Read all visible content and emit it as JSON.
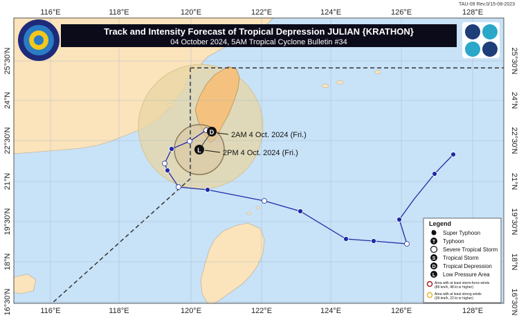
{
  "map": {
    "title": "Track and Intensity Forecast of Tropical Depression JULIAN {KRATHON}",
    "subtitle": "04 October 2024, 5AM Tropical Cyclone Bulletin #34",
    "doc_code": "TAU-09 Rev.0/15-08-2023",
    "longitude_labels": [
      "116°E",
      "118°E",
      "120°E",
      "122°E",
      "124°E",
      "126°E",
      "128°E"
    ],
    "latitude_labels": [
      "25°30'N",
      "24°N",
      "22°30'N",
      "21°N",
      "19°30'N",
      "18°N",
      "16°30'N"
    ],
    "colors": {
      "sea": "#c8e2f7",
      "land": "#fbe3bb",
      "taiwan_cone": "#f4c27e",
      "track": "#1f2aa8",
      "storm_force_ring": "#9b1c1c",
      "strong_wind_ring": "#e8b32a"
    }
  },
  "forecast": {
    "points": [
      {
        "label": "2AM 4 Oct. 2024 (Fri.)",
        "symbol": "D"
      },
      {
        "label": "2PM 4 Oct. 2024 (Fri.)",
        "symbol": "L"
      }
    ]
  },
  "legend": {
    "title": "Legend",
    "items": [
      {
        "label": "Super Typhoon",
        "icon": "super-typhoon-icon"
      },
      {
        "label": "Typhoon",
        "icon": "typhoon-icon"
      },
      {
        "label": "Severe Tropical Storm",
        "icon": "severe-tropical-storm-icon"
      },
      {
        "label": "Tropical Storm",
        "icon": "tropical-storm-icon"
      },
      {
        "label": "Tropical Depression",
        "icon": "tropical-depression-icon"
      },
      {
        "label": "Low Pressure Area",
        "icon": "low-pressure-area-icon"
      }
    ],
    "ring_storm_line1": "Area with at least storm-force winds",
    "ring_storm_line2": "(89 km/h, 48 kt or higher)",
    "ring_strong_line1": "Area with at least strong winds",
    "ring_strong_line2": "(39 km/h, 22 kt or higher)"
  }
}
